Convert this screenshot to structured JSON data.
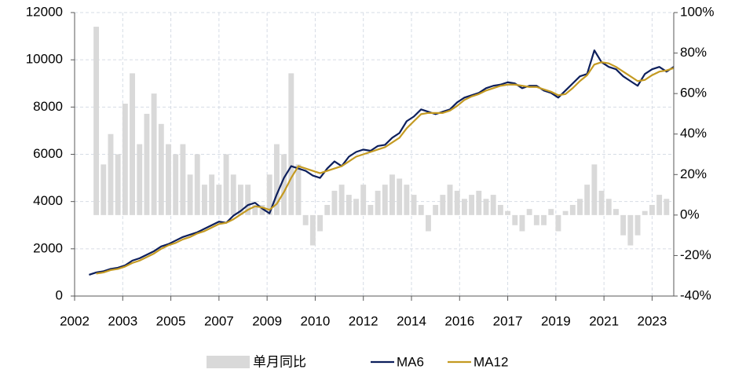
{
  "chart_data": {
    "type": "combo",
    "xlim": [
      2002,
      2022.75
    ],
    "xticks": [
      {
        "value": 2002,
        "label": "2002"
      },
      {
        "value": 2003.6667,
        "label": "2003"
      },
      {
        "value": 2005.3333,
        "label": "2005"
      },
      {
        "value": 2007,
        "label": "2007"
      },
      {
        "value": 2008.6667,
        "label": "2009"
      },
      {
        "value": 2010.3333,
        "label": "2010"
      },
      {
        "value": 2012,
        "label": "2012"
      },
      {
        "value": 2013.6667,
        "label": "2014"
      },
      {
        "value": 2015.3333,
        "label": "2016"
      },
      {
        "value": 2017,
        "label": "2017"
      },
      {
        "value": 2018.6667,
        "label": "2019"
      },
      {
        "value": 2020.3333,
        "label": "2021"
      },
      {
        "value": 2022,
        "label": "2023"
      }
    ],
    "ylim": [
      0,
      12000
    ],
    "yticks": [
      0,
      2000,
      4000,
      6000,
      8000,
      10000,
      12000
    ],
    "y2lim": [
      -40,
      100
    ],
    "y2ticks": [
      {
        "value": -40,
        "label": "-40%"
      },
      {
        "value": -20,
        "label": "-20%"
      },
      {
        "value": 0,
        "label": "0%"
      },
      {
        "value": 20,
        "label": "20%"
      },
      {
        "value": 40,
        "label": "40%"
      },
      {
        "value": 60,
        "label": "60%"
      },
      {
        "value": 80,
        "label": "80%"
      },
      {
        "value": 100,
        "label": "100%"
      }
    ],
    "grid": true,
    "legend": "bottom",
    "series": [
      {
        "name": "单月同比",
        "type": "bar",
        "axis": "y2",
        "color": "#d9d9d9",
        "x": [
          2002.75,
          2003,
          2003.25,
          2003.5,
          2003.75,
          2004,
          2004.25,
          2004.5,
          2004.75,
          2005,
          2005.25,
          2005.5,
          2005.75,
          2006,
          2006.25,
          2006.5,
          2006.75,
          2007,
          2007.25,
          2007.5,
          2007.75,
          2008,
          2008.25,
          2008.5,
          2008.75,
          2009,
          2009.25,
          2009.5,
          2009.75,
          2010,
          2010.25,
          2010.5,
          2010.75,
          2011,
          2011.25,
          2011.5,
          2011.75,
          2012,
          2012.25,
          2012.5,
          2012.75,
          2013,
          2013.25,
          2013.5,
          2013.75,
          2014,
          2014.25,
          2014.5,
          2014.75,
          2015,
          2015.25,
          2015.5,
          2015.75,
          2016,
          2016.25,
          2016.5,
          2016.75,
          2017,
          2017.25,
          2017.5,
          2017.75,
          2018,
          2018.25,
          2018.5,
          2018.75,
          2019,
          2019.25,
          2019.5,
          2019.75,
          2020,
          2020.25,
          2020.5,
          2020.75,
          2021,
          2021.25,
          2021.5,
          2021.75,
          2022,
          2022.25,
          2022.5
        ],
        "values": [
          93,
          25,
          40,
          30,
          55,
          70,
          35,
          50,
          60,
          45,
          35,
          30,
          35,
          20,
          30,
          15,
          20,
          15,
          30,
          20,
          15,
          15,
          5,
          5,
          20,
          35,
          30,
          70,
          25,
          -5,
          -15,
          -8,
          5,
          12,
          15,
          10,
          8,
          15,
          5,
          12,
          15,
          20,
          18,
          15,
          10,
          5,
          -8,
          5,
          10,
          15,
          12,
          8,
          10,
          12,
          8,
          10,
          5,
          2,
          -5,
          -8,
          3,
          -5,
          -5,
          3,
          -8,
          2,
          5,
          8,
          15,
          25,
          12,
          8,
          3,
          -10,
          -15,
          -10,
          2,
          5,
          10,
          8
        ]
      },
      {
        "name": "MA6",
        "type": "line",
        "axis": "y",
        "color": "#0d1f5c",
        "x": [
          2002.5,
          2002.75,
          2003,
          2003.25,
          2003.5,
          2003.75,
          2004,
          2004.25,
          2004.5,
          2004.75,
          2005,
          2005.25,
          2005.5,
          2005.75,
          2006,
          2006.25,
          2006.5,
          2006.75,
          2007,
          2007.25,
          2007.5,
          2007.75,
          2008,
          2008.25,
          2008.5,
          2008.75,
          2009,
          2009.25,
          2009.5,
          2009.75,
          2010,
          2010.25,
          2010.5,
          2010.75,
          2011,
          2011.25,
          2011.5,
          2011.75,
          2012,
          2012.25,
          2012.5,
          2012.75,
          2013,
          2013.25,
          2013.5,
          2013.75,
          2014,
          2014.25,
          2014.5,
          2014.75,
          2015,
          2015.25,
          2015.5,
          2015.75,
          2016,
          2016.25,
          2016.5,
          2016.75,
          2017,
          2017.25,
          2017.5,
          2017.75,
          2018,
          2018.25,
          2018.5,
          2018.75,
          2019,
          2019.25,
          2019.5,
          2019.75,
          2020,
          2020.25,
          2020.5,
          2020.75,
          2021,
          2021.25,
          2021.5,
          2021.75,
          2022,
          2022.25,
          2022.5,
          2022.75
        ],
        "values": [
          900,
          1000,
          1050,
          1150,
          1200,
          1300,
          1500,
          1600,
          1750,
          1900,
          2100,
          2200,
          2350,
          2500,
          2600,
          2700,
          2850,
          3000,
          3150,
          3100,
          3400,
          3600,
          3850,
          3950,
          3700,
          3500,
          4300,
          5000,
          5500,
          5400,
          5300,
          5100,
          5000,
          5400,
          5700,
          5500,
          5900,
          6100,
          6200,
          6150,
          6350,
          6400,
          6700,
          6900,
          7400,
          7600,
          7900,
          7800,
          7700,
          7800,
          7900,
          8200,
          8400,
          8500,
          8600,
          8800,
          8900,
          8950,
          9050,
          9000,
          8800,
          8900,
          8900,
          8700,
          8600,
          8400,
          8700,
          9000,
          9300,
          9400,
          10400,
          9900,
          9700,
          9600,
          9300,
          9100,
          8900,
          9400,
          9600,
          9700,
          9500,
          9700
        ]
      },
      {
        "name": "MA12",
        "type": "line",
        "axis": "y",
        "color": "#c49a22",
        "x": [
          2002.75,
          2003,
          2003.25,
          2003.5,
          2003.75,
          2004,
          2004.25,
          2004.5,
          2004.75,
          2005,
          2005.25,
          2005.5,
          2005.75,
          2006,
          2006.25,
          2006.5,
          2006.75,
          2007,
          2007.25,
          2007.5,
          2007.75,
          2008,
          2008.25,
          2008.5,
          2008.75,
          2009,
          2009.25,
          2009.5,
          2009.75,
          2010,
          2010.25,
          2010.5,
          2010.75,
          2011,
          2011.25,
          2011.5,
          2011.75,
          2012,
          2012.25,
          2012.5,
          2012.75,
          2013,
          2013.25,
          2013.5,
          2013.75,
          2014,
          2014.25,
          2014.5,
          2014.75,
          2015,
          2015.25,
          2015.5,
          2015.75,
          2016,
          2016.25,
          2016.5,
          2016.75,
          2017,
          2017.25,
          2017.5,
          2017.75,
          2018,
          2018.25,
          2018.5,
          2018.75,
          2019,
          2019.25,
          2019.5,
          2019.75,
          2020,
          2020.25,
          2020.5,
          2020.75,
          2021,
          2021.25,
          2021.5,
          2021.75,
          2022,
          2022.25,
          2022.5,
          2022.75
        ],
        "values": [
          950,
          1000,
          1100,
          1150,
          1250,
          1400,
          1500,
          1650,
          1800,
          2000,
          2150,
          2250,
          2400,
          2500,
          2650,
          2750,
          2900,
          3050,
          3100,
          3250,
          3450,
          3650,
          3800,
          3750,
          3650,
          3900,
          4400,
          5000,
          5500,
          5400,
          5300,
          5200,
          5300,
          5400,
          5500,
          5700,
          5900,
          6000,
          6100,
          6200,
          6300,
          6500,
          6700,
          7100,
          7400,
          7700,
          7750,
          7750,
          7750,
          7850,
          8050,
          8300,
          8450,
          8550,
          8700,
          8800,
          8900,
          8950,
          8950,
          8900,
          8850,
          8850,
          8750,
          8650,
          8500,
          8550,
          8800,
          9100,
          9350,
          9800,
          9900,
          9850,
          9700,
          9500,
          9300,
          9100,
          9150,
          9350,
          9500,
          9550,
          9650
        ]
      }
    ]
  }
}
